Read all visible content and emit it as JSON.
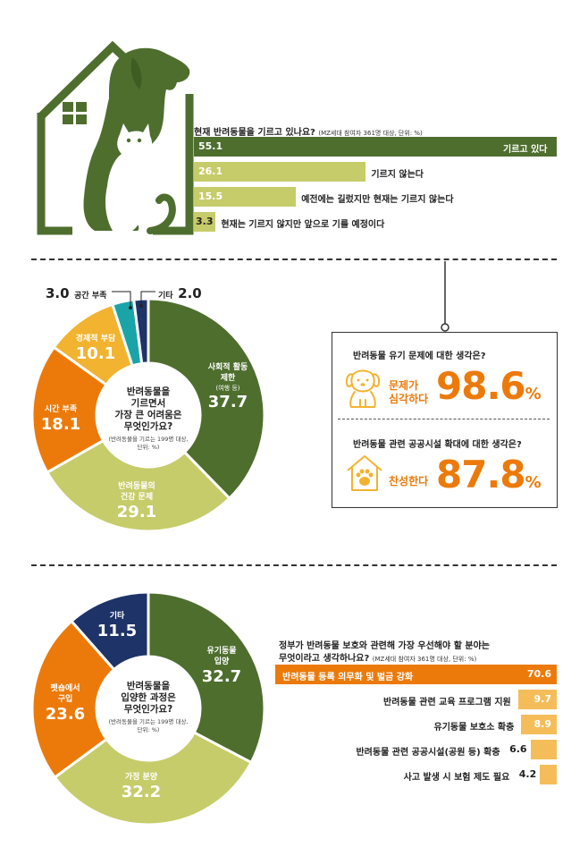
{
  "colors": {
    "dark_green": "#4e6e2e",
    "light_green": "#c6cc6a",
    "orange": "#ec7a0a",
    "yellow": "#f2b330",
    "teal": "#1aa4a8",
    "navy": "#1e3368",
    "light_orange": "#f5bd5a"
  },
  "icons": [
    "house-dog-cat-logo",
    "puppy-icon",
    "house-paw-icon"
  ],
  "chart_data": [
    {
      "type": "bar",
      "orientation": "horizontal",
      "title": "현재 반려동물을 기르고 있나요?",
      "note": "(MZ세대 참여자 361명 대상, 단위: %)",
      "categories": [
        "기르고 있다",
        "기르지 않는다",
        "예전에는 길렀지만 현재는 기르지 않는다",
        "현재는 기르지 않지만 앞으로 기를 예정이다"
      ],
      "values": [
        55.1,
        26.1,
        15.5,
        3.3
      ],
      "value_labels": [
        "55.1",
        "26.1",
        "15.5",
        "3.3"
      ]
    },
    {
      "type": "pie",
      "donut": true,
      "title": "반려동물을 기르면서 가장 큰 어려움은 무엇인가요?",
      "title_lines": [
        "반려동물을",
        "기르면서",
        "가장 큰 어려움은",
        "무엇인가요?"
      ],
      "note_lines": [
        "(반려동물을 기르는 199명 대상,",
        "단위: %)"
      ],
      "categories": [
        "사회적 활동 제한",
        "반려동물의 건강 문제",
        "시간 부족",
        "경제적 부담",
        "공간 부족",
        "기타"
      ],
      "values": [
        37.7,
        29.1,
        18.1,
        10.1,
        3.0,
        2.0
      ],
      "value_labels": [
        "37.7",
        "29.1",
        "18.1",
        "10.1",
        "3.0",
        "2.0"
      ],
      "label_lines": {
        "s0": [
          "사회적 활동",
          "제한"
        ],
        "s0_sub": "(여행 등)",
        "s1": [
          "반려동물의",
          "건강 문제"
        ],
        "s2": "시간 부족",
        "s3": "경제적 부담",
        "s4": "공간 부족",
        "s5": "기타"
      }
    },
    {
      "type": "pie",
      "donut": true,
      "title": "반려동물을 입양한 과정은 무엇인가요?",
      "title_lines": [
        "반려동물을",
        "입양한 과정은",
        "무엇인가요?"
      ],
      "note_lines": [
        "(반려동물을 기르는 199명 대상,",
        "단위: %)"
      ],
      "categories": [
        "유기동물 입양",
        "가정 분양",
        "펫숍에서 구입",
        "기타"
      ],
      "values": [
        32.7,
        32.2,
        23.6,
        11.5
      ],
      "value_labels": [
        "32.7",
        "32.2",
        "23.6",
        "11.5"
      ],
      "label_lines": {
        "s0": [
          "유기동물",
          "입양"
        ],
        "s1": "가정 분양",
        "s2": [
          "펫숍에서",
          "구입"
        ],
        "s3": "기타"
      }
    },
    {
      "type": "bar",
      "orientation": "horizontal",
      "title": "정부가 반려동물 보호와 관련해 가장 우선해야 할 분야는 무엇이라고 생각하나요?",
      "title_lines": [
        "정부가 반려동물 보호와 관련해 가장 우선해야 할 분야는",
        "무엇이라고 생각하나요?"
      ],
      "note": "(MZ세대 참여자 361명 대상, 단위: %)",
      "categories": [
        "반려동물 등록 의무화 및 벌금 강화",
        "반려동물 관련 교육 프로그램 지원",
        "유기동물 보호소 확충",
        "반려동물 관련 공공시설(공원 등) 확충",
        "사고 발생 시 보험 제도 필요"
      ],
      "values": [
        70.6,
        9.7,
        8.9,
        6.6,
        4.2
      ],
      "value_labels": [
        "70.6",
        "9.7",
        "8.9",
        "6.6",
        "4.2"
      ]
    }
  ],
  "highlight": {
    "q1": "반려동물 유기 문제에 대한 생각은?",
    "q1_sub_lines": [
      "문제가",
      "심각하다"
    ],
    "q1_value": "98.6",
    "q2": "반려동물 관련 공공시설 확대에 대한 생각은?",
    "q2_sub": "찬성한다",
    "q2_value": "87.8",
    "unit": "%"
  }
}
